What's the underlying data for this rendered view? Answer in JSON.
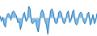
{
  "chart_data": {
    "type": "area",
    "values": [
      2,
      -3,
      1,
      -6,
      -8,
      2,
      4,
      3,
      -2,
      5,
      6,
      4,
      2,
      -4,
      -3,
      -10,
      -5,
      3,
      5,
      -3,
      -2,
      10,
      8,
      -4,
      -5,
      -3,
      -2,
      -8,
      -12,
      -4,
      5,
      7,
      4,
      -3,
      -6,
      -14,
      -4,
      6,
      8,
      5,
      -3,
      -5,
      -4,
      5,
      6,
      4,
      -3,
      -5,
      -3,
      4,
      6,
      -4,
      -2,
      5,
      7,
      -4,
      -6,
      -4,
      3,
      5,
      4,
      -3,
      -5,
      -3,
      4,
      5,
      -6,
      -4,
      3,
      -5,
      -3,
      4
    ],
    "color": "#1a7abf",
    "ylim": [
      -15.4,
      15.4
    ],
    "tick_labels": false,
    "grid": false
  }
}
